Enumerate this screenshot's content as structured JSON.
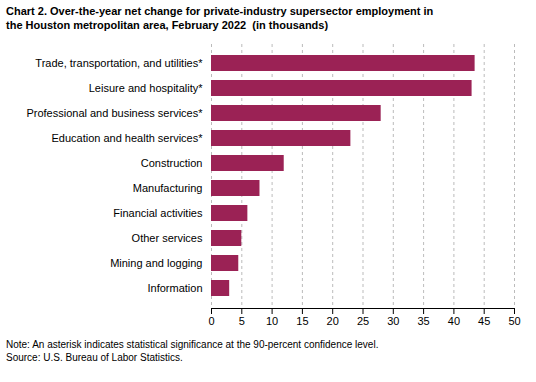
{
  "chart_data": {
    "type": "bar",
    "orientation": "horizontal",
    "title": "Chart 2. Over-the-year net change for private-industry supersector employment in\nthe Houston metropolitan area, February 2022  (in thousands)",
    "categories": [
      "Information",
      "Mining and logging",
      "Other services",
      "Financial activities",
      "Manufacturing",
      "Construction",
      "Education and health services*",
      "Professional and business services*",
      "Leisure and hospitality*",
      "Trade, transportation, and utilities*"
    ],
    "values": [
      3.0,
      4.5,
      5.0,
      6.0,
      8.0,
      12.0,
      23.0,
      28.0,
      43.0,
      43.5
    ],
    "color": "#9b2255",
    "xlim": [
      0,
      50
    ],
    "xticks": [
      0,
      5,
      10,
      15,
      20,
      25,
      30,
      35,
      40,
      45,
      50
    ],
    "grid": true,
    "annotations": [
      "Note: An asterisk indicates statistical significance at the 90-percent confidence level.",
      "Source: U.S. Bureau of Labor Statistics."
    ]
  }
}
